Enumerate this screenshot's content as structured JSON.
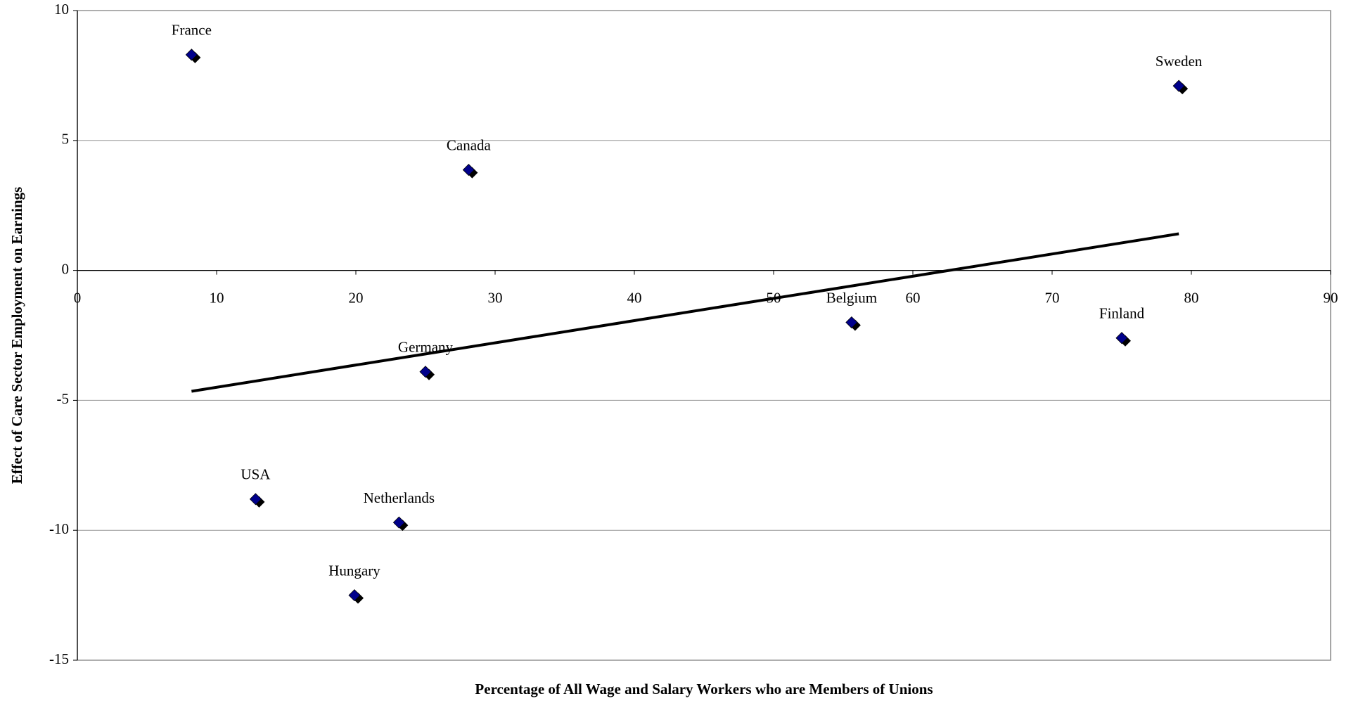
{
  "chart_data": {
    "type": "scatter",
    "x_label": "Percentage of All Wage and Salary Workers who are Members of Unions",
    "y_label": "Effect of Care Sector Employment on Earnings",
    "labels": [
      "France",
      "Canada",
      "Sweden",
      "Belgium",
      "Finland",
      "Germany",
      "USA",
      "Netherlands",
      "Hungary"
    ],
    "x": [
      8.2,
      28.1,
      79.1,
      55.6,
      75.0,
      25.0,
      12.8,
      23.1,
      19.9
    ],
    "values": [
      8.3,
      3.87,
      7.1,
      -2.0,
      -2.6,
      -3.9,
      -8.8,
      -9.7,
      -12.5
    ],
    "color": "#00008b",
    "trendline": {
      "x": [
        8.2,
        79.1
      ],
      "y": [
        -4.65,
        1.41
      ],
      "color": "#000000"
    },
    "xlim": [
      0,
      90
    ],
    "xticks": [
      0,
      10,
      20,
      30,
      40,
      50,
      60,
      70,
      80,
      90
    ],
    "ylim": [
      -15,
      10
    ],
    "yticks": [
      -15,
      -10,
      -5,
      0,
      5,
      10
    ],
    "grid": true
  }
}
